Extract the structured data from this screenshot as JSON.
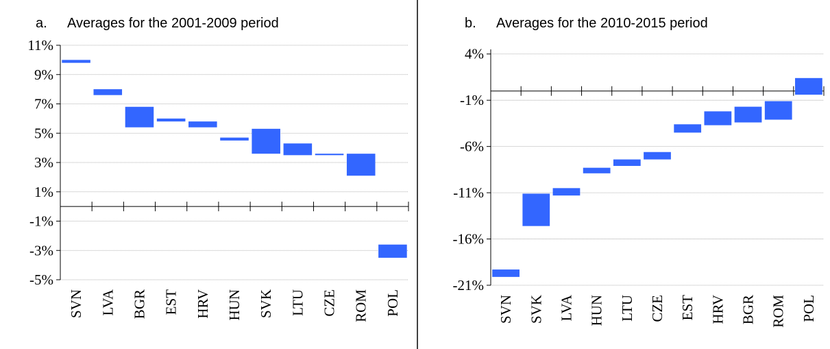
{
  "chart_data": [
    {
      "type": "bar",
      "panel": "a.",
      "title": "Averages for the 2001-2009 period",
      "categories": [
        "SVN",
        "LVA",
        "BGR",
        "EST",
        "HRV",
        "HUN",
        "SVK",
        "LTU",
        "CZE",
        "ROM",
        "POL"
      ],
      "low": [
        9.8,
        7.6,
        5.4,
        5.8,
        5.4,
        4.5,
        3.6,
        3.5,
        3.5,
        2.1,
        -3.5
      ],
      "high": [
        10.0,
        8.0,
        6.8,
        6.0,
        5.8,
        4.7,
        5.3,
        4.3,
        3.6,
        3.6,
        -2.6
      ],
      "color": "#3366ff",
      "ylim": [
        -5,
        11
      ],
      "grid": true,
      "yticks": [
        {
          "value": -5,
          "label": "-5%"
        },
        {
          "value": -3,
          "label": "-3%"
        },
        {
          "value": -1,
          "label": "-1%"
        },
        {
          "value": 1,
          "label": "1%"
        },
        {
          "value": 3,
          "label": "3%"
        },
        {
          "value": 5,
          "label": "5%"
        },
        {
          "value": 7,
          "label": "7%"
        },
        {
          "value": 9,
          "label": "9%"
        },
        {
          "value": 11,
          "label": "11%"
        }
      ]
    },
    {
      "type": "bar",
      "panel": "b.",
      "title": "Averages for the 2010-2015 period",
      "categories": [
        "SVN",
        "SVK",
        "LVA",
        "HUN",
        "LTU",
        "CZE",
        "EST",
        "HRV",
        "BGR",
        "ROM",
        "POL"
      ],
      "low": [
        -20.1,
        -14.6,
        -11.3,
        -8.9,
        -8.1,
        -7.4,
        -4.5,
        -3.7,
        -3.4,
        -3.1,
        -0.4
      ],
      "high": [
        -19.3,
        -11.1,
        -10.5,
        -8.3,
        -7.4,
        -6.6,
        -3.6,
        -2.2,
        -1.7,
        -1.1,
        1.4
      ],
      "color": "#3366ff",
      "ylim": [
        -21,
        4.5
      ],
      "grid": true,
      "yticks": [
        {
          "value": -21,
          "label": "-21%"
        },
        {
          "value": -16,
          "label": "-16%"
        },
        {
          "value": -11,
          "label": "-11%"
        },
        {
          "value": -6,
          "label": "-6%"
        },
        {
          "value": -1,
          "label": "-1%"
        },
        {
          "value": 4,
          "label": "4%"
        }
      ]
    }
  ]
}
